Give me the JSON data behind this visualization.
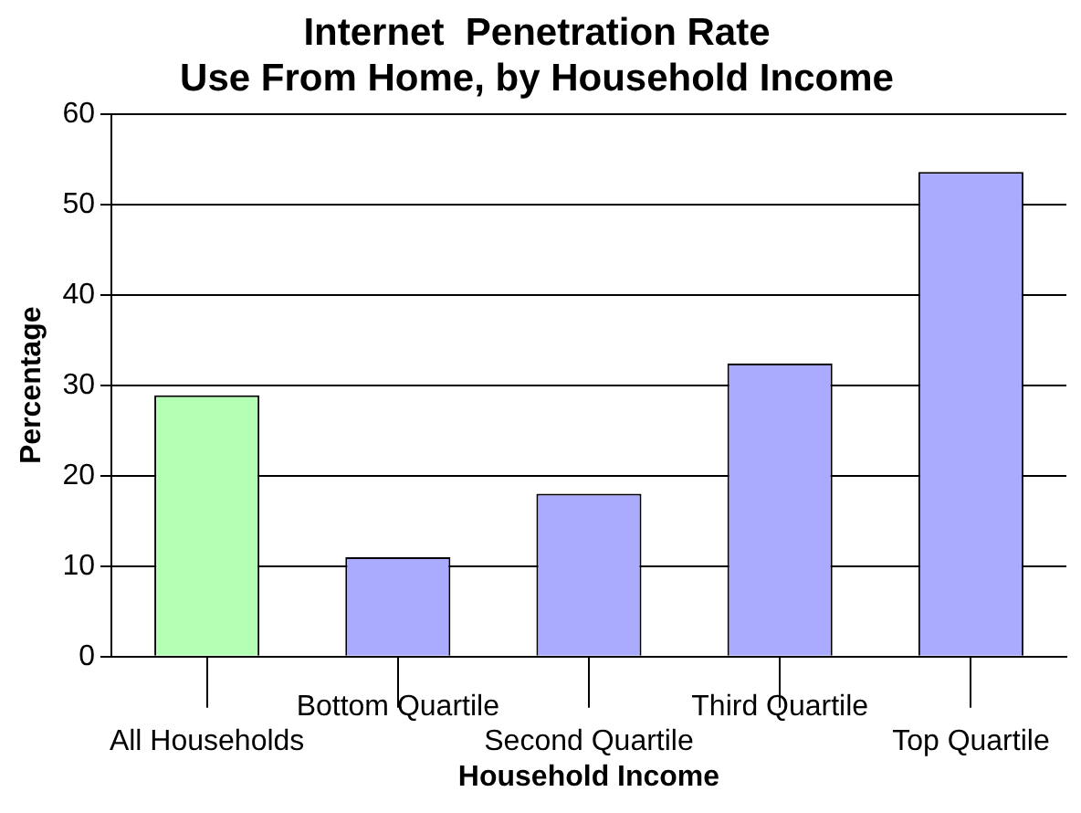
{
  "chart_data": {
    "type": "bar",
    "title": [
      "Internet  Penetration Rate",
      "Use From Home, by Household Income"
    ],
    "xlabel": "Household Income",
    "ylabel": "Percentage",
    "categories": [
      "All Households",
      "Bottom Quartile",
      "Second Quartile",
      "Third Quartile",
      "Top Quartile"
    ],
    "values": [
      28.9,
      11,
      18,
      32.4,
      53.6
    ],
    "colors": [
      "#b3ffb3",
      "#aaaaff",
      "#aaaaff",
      "#aaaaff",
      "#aaaaff"
    ],
    "ylim": [
      0,
      60
    ],
    "yticks": [
      0,
      10,
      20,
      30,
      40,
      50,
      60
    ],
    "grid": "y",
    "legend": false
  }
}
